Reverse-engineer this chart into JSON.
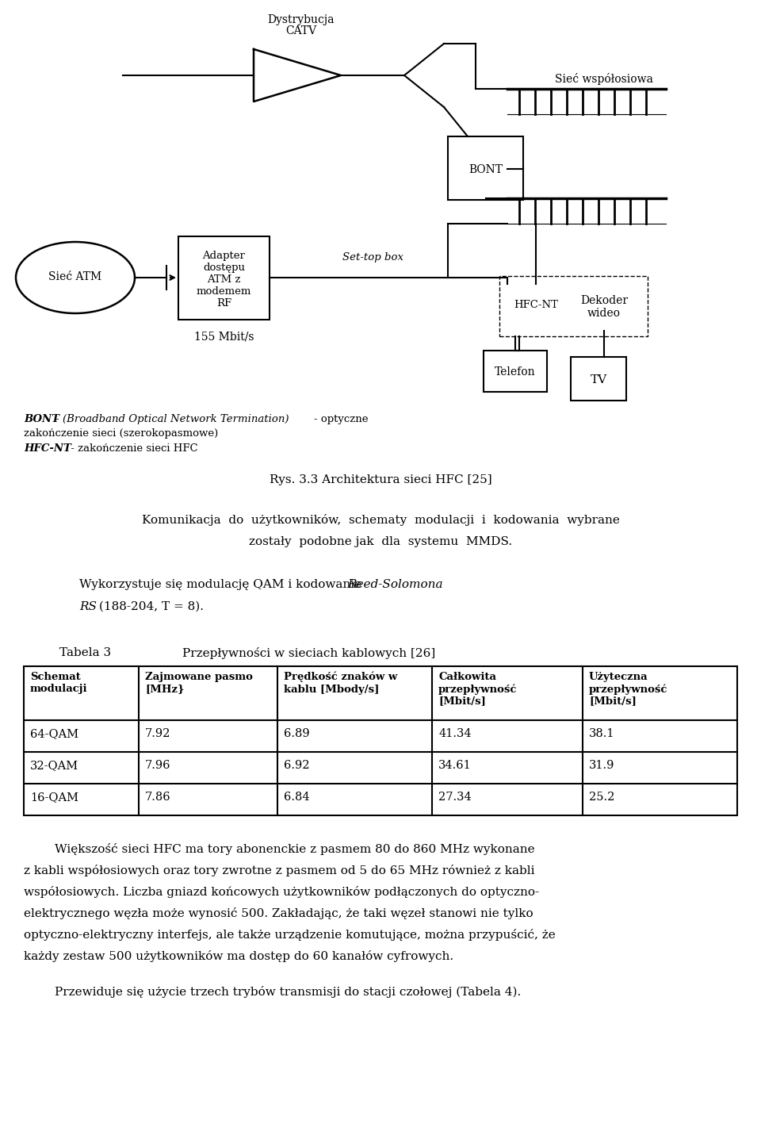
{
  "bg_color": "#ffffff",
  "title_caption": "Rys. 3.3 Architektura sieci HFC [25]",
  "table_title_left": "Tabela 3",
  "table_title_right": "Przepływności w sieciach kablowych [26]",
  "table_headers": [
    "Schemat\nmodulacji",
    "Zajmowane pasmo\n[MHz}",
    "Prędkość znaków w\nkablu [Mbody/s]",
    "Całkowita\nprzepływność\n[Mbit/s]",
    "Użyteczna\nprzepływność\n[Mbit/s]"
  ],
  "table_rows": [
    [
      "64-QAM",
      "7.92",
      "6.89",
      "41.34",
      "38.1"
    ],
    [
      "32-QAM",
      "7.96",
      "6.92",
      "34.61",
      "31.9"
    ],
    [
      "16-QAM",
      "7.86",
      "6.84",
      "27.34",
      "25.2"
    ]
  ],
  "legend_bont_bold": "BONT",
  "legend_bont_italic": " - (Broadband Optical Network Termination)",
  "legend_bont_normal": "- optyczne",
  "legend_bont_line2": "zakończenie sieci (szerokopasmowe)",
  "legend_hfcnt_bold": "HFC-NT",
  "legend_hfcnt_normal": " - zakończenie sieci HFC",
  "para1_line1": "Komunikacja  do  użytkowników,  schematy  modulacji  i  kodowania  wybrane",
  "para1_line2": "zostały  podobne jak  dla  systemu  MMDS.",
  "para2a": "Wykorzystuje się modulację QAM i kodowanie ",
  "para2b": "Reed-Solomona",
  "para3a": "RS",
  "para3b": " (188-204, T = 8).",
  "para4_lines": [
    "        Większość sieci HFC ma tory abonenckie z pasmem 80 do 860 MHz wykonane",
    "z kabli współosiowych oraz tory zwrotne z pasmem od 5 do 65 MHz również z kabli",
    "współosiowych. Liczba gniazd końcowych użytkowników podłączonych do optyczno-",
    "elektrycznego węzła może wynosić 500. Zakładając, że taki węzeł stanowi nie tylko",
    "optyczno-elektryczny interfejs, ale także urządzenie komutujące, można przypuścić, że",
    "każdy zestaw 500 użytkowników ma dostęp do 60 kanałów cyfrowych."
  ],
  "para5": "        Przewiduje się użycie trzech trybów transmisji do stacji czołowej (Tabela 4)."
}
